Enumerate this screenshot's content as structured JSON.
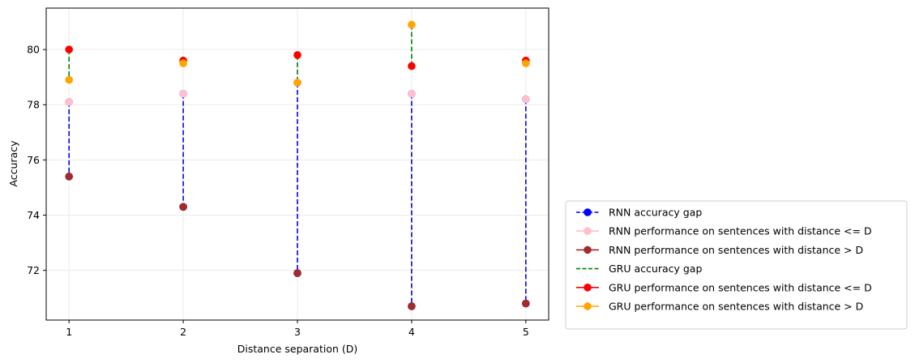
{
  "chart_data": {
    "type": "scatter",
    "xlabel": "Distance separation (D)",
    "ylabel": "Accuracy",
    "x": [
      1,
      2,
      3,
      4,
      5
    ],
    "xlim": [
      0.8,
      5.2
    ],
    "ylim": [
      70.2,
      81.5
    ],
    "xticks": [
      "1",
      "2",
      "3",
      "4",
      "5"
    ],
    "yticks": [
      "72",
      "74",
      "76",
      "78",
      "80"
    ],
    "grid": true,
    "legend_position": "outside-lower-right",
    "series": [
      {
        "key": "rnn_le",
        "name": "RNN performance on sentences with distance <= D",
        "color": "#ffc0cb",
        "values": [
          78.1,
          78.4,
          78.8,
          78.4,
          78.2
        ]
      },
      {
        "key": "rnn_gt",
        "name": "RNN performance on sentences with distance > D",
        "color": "#a52a2a",
        "values": [
          75.4,
          74.3,
          71.9,
          70.7,
          70.8
        ]
      },
      {
        "key": "gru_le",
        "name": "GRU performance on sentences with distance <= D",
        "color": "#ff0000",
        "values": [
          80.0,
          79.6,
          79.8,
          79.4,
          79.6
        ]
      },
      {
        "key": "gru_gt",
        "name": "GRU performance on sentences with distance > D",
        "color": "#ffa500",
        "values": [
          78.9,
          79.5,
          78.8,
          80.9,
          79.5
        ]
      }
    ],
    "gaps": [
      {
        "name": "RNN accuracy gap",
        "color": "#0000ff",
        "from": "rnn_le",
        "to": "rnn_gt"
      },
      {
        "name": "GRU accuracy gap",
        "color": "#008000",
        "from": "gru_le",
        "to": "gru_gt"
      }
    ],
    "legend": [
      {
        "label": "RNN accuracy gap",
        "color": "#0000ff",
        "line": "dashed",
        "marker": true
      },
      {
        "label": "RNN performance on sentences with distance <= D",
        "color": "#ffc0cb",
        "line": "solid",
        "marker": true
      },
      {
        "label": "RNN performance on sentences with distance > D",
        "color": "#a52a2a",
        "line": "solid",
        "marker": true
      },
      {
        "label": "GRU accuracy gap",
        "color": "#008000",
        "line": "dashed",
        "marker": false
      },
      {
        "label": "GRU performance on sentences with distance <= D",
        "color": "#ff0000",
        "line": "solid",
        "marker": true
      },
      {
        "label": "GRU performance on sentences with distance > D",
        "color": "#ffa500",
        "line": "solid",
        "marker": true
      }
    ]
  }
}
